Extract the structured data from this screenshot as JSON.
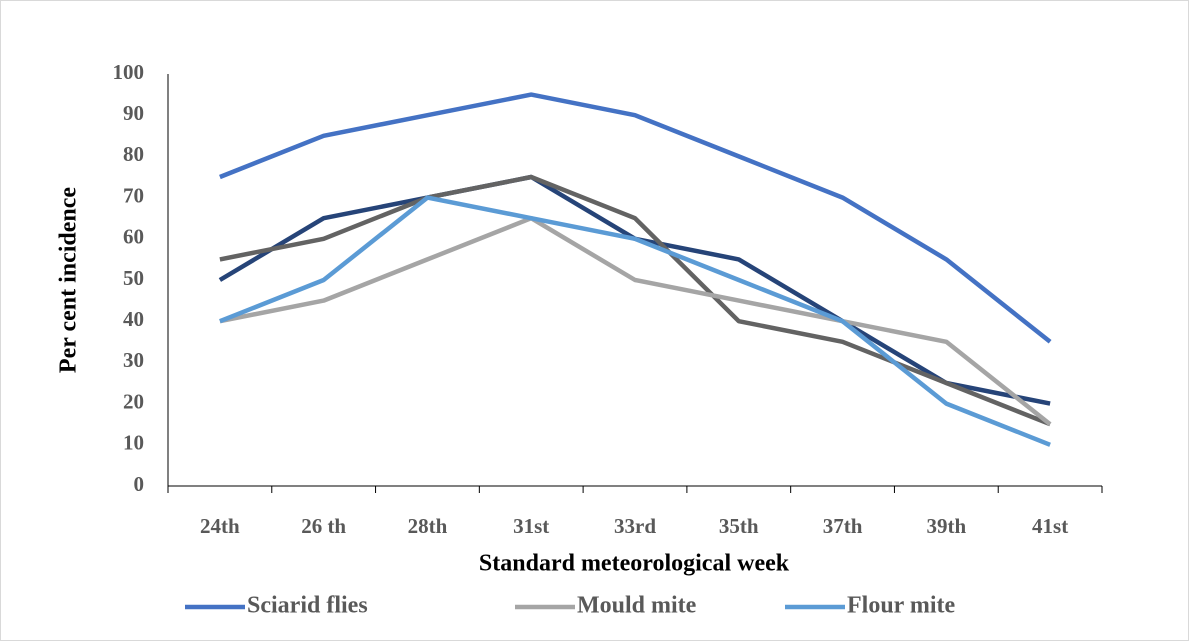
{
  "chart_data": {
    "type": "line",
    "x_label": "Standard meteorological week",
    "y_label": "Per cent incidence",
    "categories": [
      "24th",
      "26 th",
      "28th",
      "31st",
      "33rd",
      "35th",
      "37th",
      "39th",
      "41st"
    ],
    "series": [
      {
        "name": "Sciarid flies",
        "color": "#4472c4",
        "values": [
          75,
          85,
          90,
          95,
          90,
          80,
          70,
          55,
          35
        ]
      },
      {
        "color": "#264478",
        "values": [
          50,
          65,
          70,
          75,
          60,
          55,
          40,
          25,
          20
        ]
      },
      {
        "color": "#636363",
        "values": [
          55,
          60,
          70,
          75,
          65,
          40,
          35,
          25,
          15
        ]
      },
      {
        "name": "Mould mite",
        "color": "#a5a5a5",
        "values": [
          40,
          45,
          55,
          65,
          50,
          45,
          40,
          35,
          15
        ]
      },
      {
        "name": "Flour mite",
        "color": "#5b9bd5",
        "values": [
          40,
          50,
          70,
          65,
          60,
          50,
          40,
          20,
          10
        ]
      }
    ],
    "ylim": [
      0,
      100
    ],
    "yticks": [
      0,
      10,
      20,
      30,
      40,
      50,
      60,
      70,
      80,
      90,
      100
    ],
    "grid": false,
    "legend": "bottom"
  }
}
